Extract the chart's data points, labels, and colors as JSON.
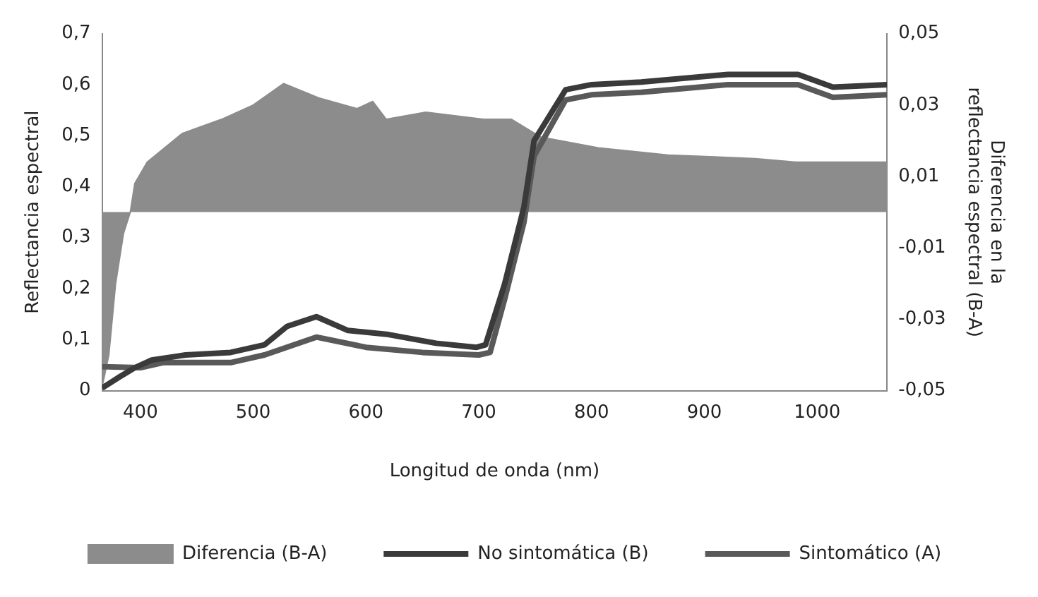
{
  "chart_data": {
    "type": "line",
    "xlabel": "Longitud de onda (nm)",
    "ylabel": "Reflectancia espectral",
    "y2label": "Diferencia en la reflectancia espectral (B-A)",
    "xlim": [
      366,
      1062
    ],
    "xticks": [
      400,
      500,
      600,
      700,
      800,
      900,
      1000
    ],
    "ylim": [
      0,
      0.7
    ],
    "yticks": [
      {
        "value": 0,
        "label": "0"
      },
      {
        "value": 0.1,
        "label": "0,1"
      },
      {
        "value": 0.2,
        "label": "0,2"
      },
      {
        "value": 0.3,
        "label": "0,3"
      },
      {
        "value": 0.4,
        "label": "0,4"
      },
      {
        "value": 0.5,
        "label": "0,5"
      },
      {
        "value": 0.6,
        "label": "0,6"
      },
      {
        "value": 0.7,
        "label": "0,7"
      }
    ],
    "y2lim": [
      -0.05,
      0.05
    ],
    "y2ticks": [
      {
        "value": -0.05,
        "label": "-0,05"
      },
      {
        "value": -0.03,
        "label": "-0,03"
      },
      {
        "value": -0.01,
        "label": "-0,01"
      },
      {
        "value": 0.01,
        "label": "0,01"
      },
      {
        "value": 0.03,
        "label": "0,03"
      },
      {
        "value": 0.05,
        "label": "0,05"
      }
    ],
    "grid": false,
    "legend": "bottom",
    "marker": "none",
    "series": [
      {
        "name": "Diferencia (B-A)",
        "type": "area",
        "axis": "y2",
        "color": "#8c8c8c",
        "x": [
          366,
          372,
          378,
          385,
          391,
          395,
          406,
          437,
          472,
          500,
          527,
          558,
          592,
          606,
          618,
          653,
          704,
          729,
          755,
          806,
          868,
          945,
          981,
          1062
        ],
        "values": [
          -0.049,
          -0.04,
          -0.02,
          -0.006,
          0,
          0.008,
          0.014,
          0.022,
          0.026,
          0.03,
          0.036,
          0.032,
          0.029,
          0.031,
          0.026,
          0.028,
          0.026,
          0.026,
          0.021,
          0.018,
          0.016,
          0.015,
          0.014,
          0.014
        ]
      },
      {
        "name": "No sintomática (B)",
        "type": "line",
        "color": "#3a3a3a",
        "x": [
          366,
          380,
          395,
          410,
          440,
          480,
          510,
          530,
          556,
          584,
          620,
          662,
          698,
          706,
          723,
          740,
          749,
          777,
          800,
          844,
          921,
          983,
          1014,
          1062
        ],
        "values": [
          0.005,
          0.025,
          0.045,
          0.06,
          0.07,
          0.075,
          0.09,
          0.126,
          0.145,
          0.118,
          0.11,
          0.093,
          0.085,
          0.09,
          0.21,
          0.36,
          0.49,
          0.59,
          0.6,
          0.605,
          0.62,
          0.62,
          0.595,
          0.6
        ]
      },
      {
        "name": "Sintomático (A)",
        "type": "line",
        "color": "#595959",
        "x": [
          366,
          400,
          420,
          480,
          510,
          556,
          600,
          650,
          700,
          710,
          723,
          740,
          749,
          777,
          800,
          844,
          921,
          983,
          1014,
          1062
        ],
        "values": [
          0.047,
          0.045,
          0.055,
          0.055,
          0.07,
          0.105,
          0.085,
          0.075,
          0.07,
          0.075,
          0.18,
          0.33,
          0.46,
          0.57,
          0.58,
          0.585,
          0.6,
          0.6,
          0.575,
          0.58
        ]
      }
    ]
  }
}
